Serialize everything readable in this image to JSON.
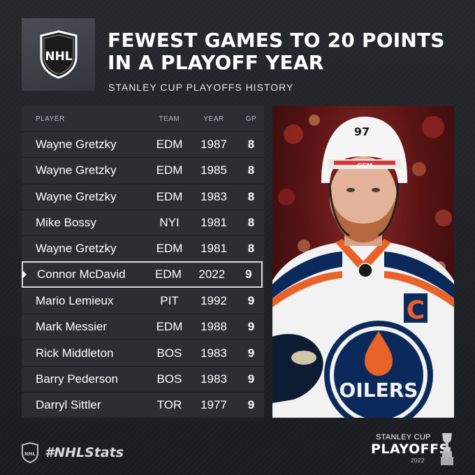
{
  "header": {
    "logo_text": "NHL",
    "title_line1": "FEWEST GAMES TO 20 POINTS",
    "title_line2": "IN A PLAYOFF YEAR",
    "subtitle": "STANLEY CUP PLAYOFFS HISTORY"
  },
  "table": {
    "columns": [
      "PLAYER",
      "TEAM",
      "YEAR",
      "GP"
    ],
    "rows": [
      {
        "player": "Wayne Gretzky",
        "team": "EDM",
        "year": "1987",
        "gp": "8"
      },
      {
        "player": "Wayne Gretzky",
        "team": "EDM",
        "year": "1985",
        "gp": "8"
      },
      {
        "player": "Wayne Gretzky",
        "team": "EDM",
        "year": "1983",
        "gp": "8"
      },
      {
        "player": "Mike Bossy",
        "team": "NYI",
        "year": "1981",
        "gp": "8"
      },
      {
        "player": "Wayne Gretzky",
        "team": "EDM",
        "year": "1981",
        "gp": "8"
      },
      {
        "player": "Connor McDavid",
        "team": "EDM",
        "year": "2022",
        "gp": "9"
      },
      {
        "player": "Mario Lemieux",
        "team": "PIT",
        "year": "1992",
        "gp": "9"
      },
      {
        "player": "Mark Messier",
        "team": "EDM",
        "year": "1988",
        "gp": "9"
      },
      {
        "player": "Rick Middleton",
        "team": "BOS",
        "year": "1983",
        "gp": "9"
      },
      {
        "player": "Barry Pederson",
        "team": "BOS",
        "year": "1983",
        "gp": "9"
      },
      {
        "player": "Darryl Sittler",
        "team": "TOR",
        "year": "1977",
        "gp": "9"
      }
    ],
    "highlighted_row": 5
  },
  "photo": {
    "jersey_number": "97",
    "helmet_brand": "CCM",
    "captain_letter": "C",
    "crest_text": "OILERS",
    "colors": {
      "orange": "#e8622a",
      "navy": "#0b2a5b",
      "white": "#f2f2f2"
    }
  },
  "footer": {
    "hashtag": "#NHLStats",
    "logo_text": "NHL",
    "playoffs_line1": "STANLEY CUP",
    "playoffs_line2": "PLAYOFFS",
    "playoffs_line3": "2022"
  }
}
